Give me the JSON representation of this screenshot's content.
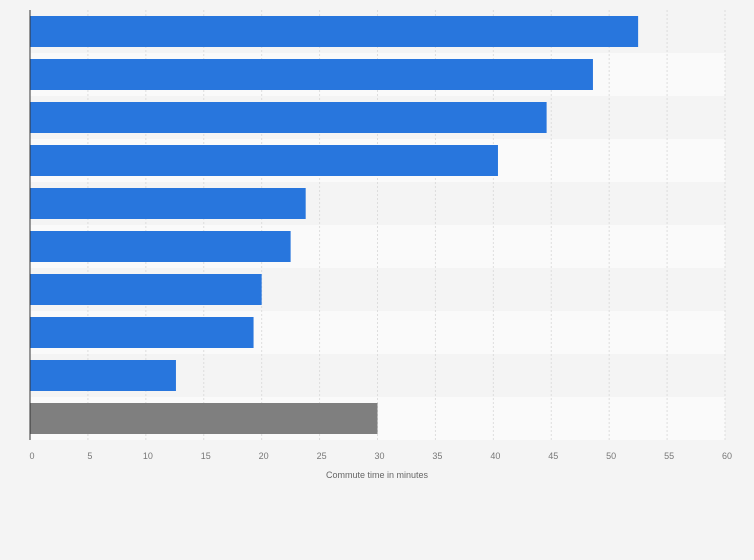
{
  "chart_data": {
    "type": "bar",
    "orientation": "horizontal",
    "title": "",
    "xlabel": "Commute time in minutes",
    "ylabel": "",
    "categories": [
      "",
      "",
      "",
      "",
      "",
      "",
      "",
      "",
      "",
      ""
    ],
    "values": [
      52.5,
      48.6,
      44.6,
      40.4,
      23.8,
      22.5,
      20.0,
      19.3,
      12.6,
      30.0
    ],
    "highlight_index": 9,
    "xlim": [
      0,
      60
    ],
    "xticks": [
      "0",
      "5",
      "10",
      "15",
      "20",
      "25",
      "30",
      "35",
      "40",
      "45",
      "50",
      "55",
      "60"
    ],
    "grid": true,
    "colors": {
      "bar": "#2876dd",
      "highlight": "#7f7f7f",
      "row_a": "#f4f4f4",
      "row_b": "#fafafa",
      "grid": "#dddddd"
    }
  }
}
